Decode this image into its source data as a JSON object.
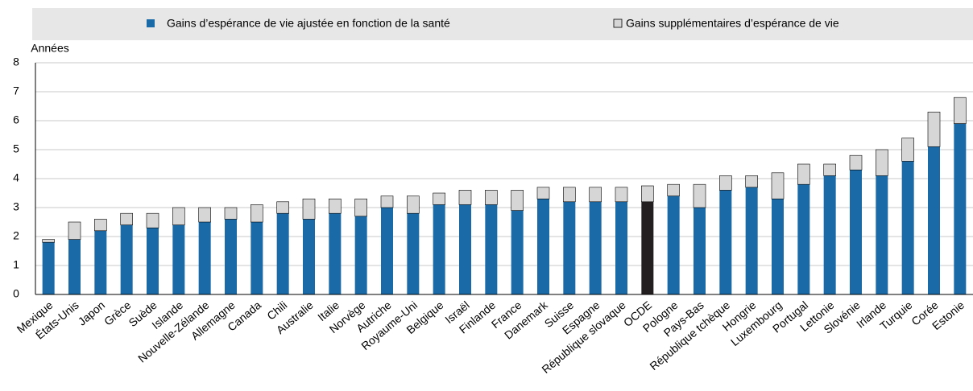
{
  "chart_data": {
    "type": "stacked_bar",
    "y_label": "Années",
    "categories": [
      "Mexique",
      "États-Unis",
      "Japon",
      "Grèce",
      "Suède",
      "Islande",
      "Nouvelle-Zélande",
      "Allemagne",
      "Canada",
      "Chili",
      "Australie",
      "Italie",
      "Norvège",
      "Autriche",
      "Royaume-Uni",
      "Belgique",
      "Israël",
      "Finlande",
      "France",
      "Danemark",
      "Suisse",
      "Espagne",
      "République slovaque",
      "OCDE",
      "Pologne",
      "Pays-Bas",
      "République tchèque",
      "Hongrie",
      "Luxembourg",
      "Portugal",
      "Lettonie",
      "Slovénie",
      "Irlande",
      "Turquie",
      "Corée",
      "Estonie"
    ],
    "series": [
      {
        "name": "Gains d’espérance de vie ajustée en fonction de la santé",
        "color": "#1a6aa8",
        "values": [
          1.8,
          1.9,
          2.2,
          2.4,
          2.3,
          2.4,
          2.5,
          2.6,
          2.5,
          2.8,
          2.6,
          2.8,
          2.7,
          3.0,
          2.8,
          3.1,
          3.1,
          3.1,
          2.9,
          3.3,
          3.2,
          3.2,
          3.2,
          3.2,
          3.4,
          3.0,
          3.6,
          3.7,
          3.3,
          3.8,
          4.1,
          4.3,
          4.1,
          4.6,
          5.1,
          5.9
        ]
      },
      {
        "name": "Gains supplémentaires d’espérance de vie",
        "color": "#d6d6d6",
        "values": [
          0.1,
          0.6,
          0.4,
          0.4,
          0.5,
          0.6,
          0.5,
          0.4,
          0.6,
          0.4,
          0.7,
          0.5,
          0.6,
          0.4,
          0.6,
          0.4,
          0.5,
          0.5,
          0.7,
          0.4,
          0.5,
          0.5,
          0.5,
          0.55,
          0.4,
          0.8,
          0.5,
          0.4,
          0.9,
          0.7,
          0.4,
          0.5,
          0.9,
          0.8,
          1.2,
          0.9
        ]
      }
    ],
    "highlight": {
      "category": "OCDE",
      "color": "#231f20"
    },
    "ylim": [
      0,
      8
    ],
    "yticks": [
      0,
      1,
      2,
      3,
      4,
      5,
      6,
      7,
      8
    ],
    "grid": true
  }
}
